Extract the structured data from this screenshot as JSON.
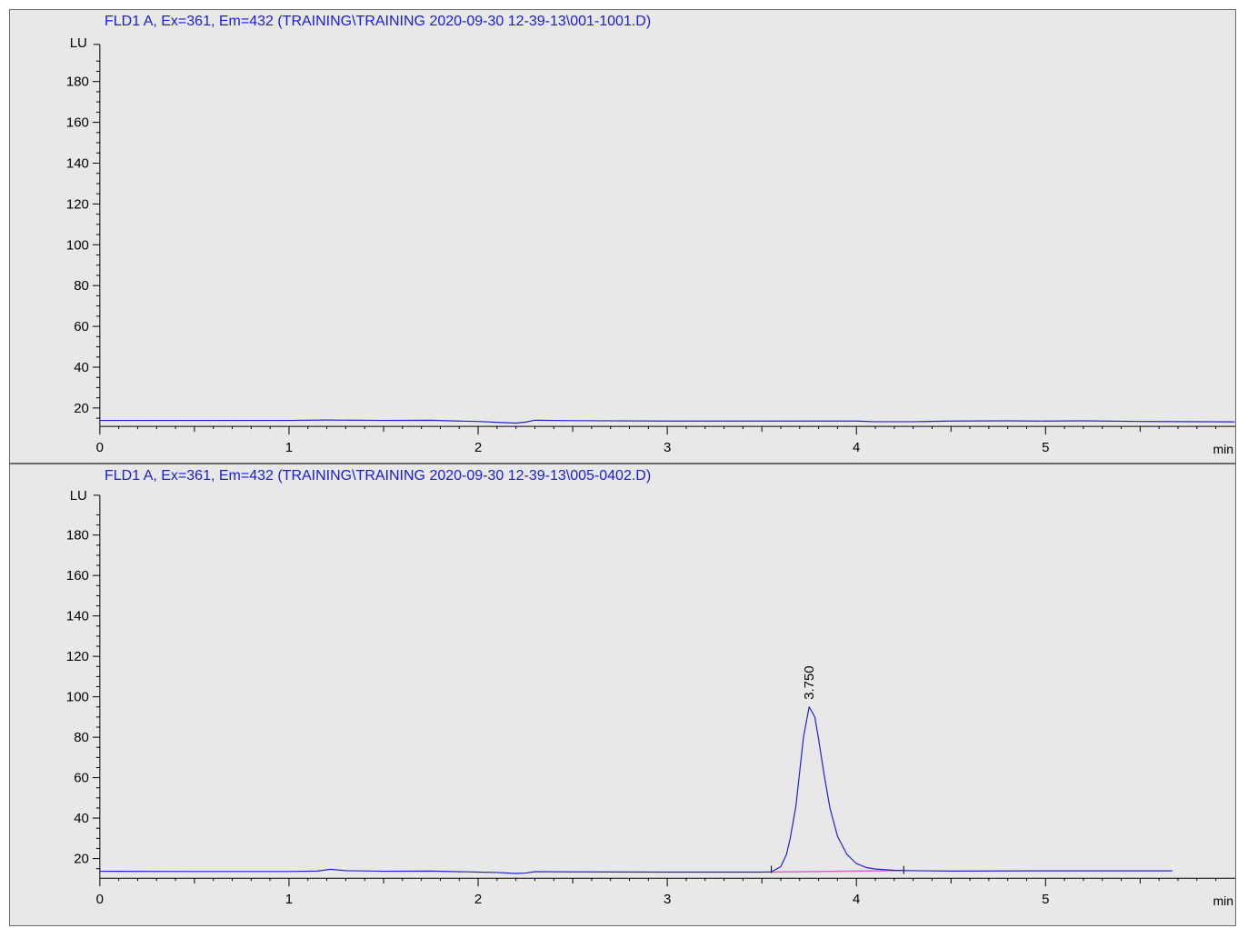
{
  "colors": {
    "background": "#e8e8e8",
    "trace": "#2222cc",
    "title": "#1a1adc",
    "axis": "#000000",
    "baseline": "#e060d0"
  },
  "chart_data": [
    {
      "type": "line",
      "title": "FLD1 A, Ex=361, Em=432 (TRAINING\\TRAINING 2020-09-30 12-39-13\\001-1001.D)",
      "ylabel": "LU",
      "xlabel": "min",
      "xlim": [
        0,
        6
      ],
      "ylim": [
        10,
        195
      ],
      "xticks": [
        "0",
        "1",
        "2",
        "3",
        "4",
        "5"
      ],
      "yticks": [
        "20",
        "40",
        "60",
        "80",
        "100",
        "120",
        "140",
        "160",
        "180"
      ],
      "series": [
        {
          "x": [
            0,
            0.5,
            1.0,
            1.2,
            1.5,
            1.75,
            1.9,
            2.0,
            2.1,
            2.2,
            2.25,
            2.3,
            2.5,
            3.0,
            3.5,
            4.0,
            4.1,
            4.3,
            4.5,
            4.8,
            5.0,
            5.2,
            5.5,
            6.0
          ],
          "y": [
            13.9,
            13.9,
            13.9,
            14.1,
            13.9,
            14.0,
            13.6,
            13.4,
            13.0,
            12.6,
            13.1,
            14.0,
            13.8,
            13.6,
            13.6,
            13.6,
            13.3,
            13.3,
            13.6,
            13.7,
            13.6,
            13.7,
            13.4,
            13.2
          ]
        }
      ]
    },
    {
      "type": "line",
      "title": "FLD1 A, Ex=361, Em=432 (TRAINING\\TRAINING 2020-09-30 12-39-13\\005-0402.D)",
      "ylabel": "LU",
      "xlabel": "min",
      "xlim": [
        0,
        6
      ],
      "ylim": [
        10,
        195
      ],
      "xticks": [
        "0",
        "1",
        "2",
        "3",
        "4",
        "5"
      ],
      "yticks": [
        "20",
        "40",
        "60",
        "80",
        "100",
        "120",
        "140",
        "160",
        "180"
      ],
      "series": [
        {
          "x": [
            0,
            0.5,
            1.0,
            1.15,
            1.22,
            1.3,
            1.5,
            1.75,
            2.0,
            2.1,
            2.2,
            2.25,
            2.3,
            2.5,
            3.0,
            3.5,
            3.55,
            3.6,
            3.63,
            3.65,
            3.68,
            3.7,
            3.72,
            3.75,
            3.78,
            3.8,
            3.83,
            3.86,
            3.9,
            3.95,
            4.0,
            4.05,
            4.1,
            4.2,
            4.3,
            4.5,
            5.0,
            5.5,
            5.67
          ],
          "y": [
            13.7,
            13.6,
            13.6,
            13.8,
            14.7,
            14.0,
            13.7,
            13.8,
            13.3,
            13.1,
            12.6,
            12.8,
            13.5,
            13.4,
            13.3,
            13.3,
            13.4,
            16.0,
            22.0,
            30.0,
            46.0,
            63.0,
            80.0,
            95.0,
            90.0,
            79.0,
            61.0,
            45.0,
            31.0,
            22.0,
            17.5,
            15.6,
            14.8,
            14.2,
            14.0,
            13.8,
            13.9,
            13.9,
            13.9
          ]
        }
      ],
      "peaks": [
        {
          "label": "3.750",
          "x": 3.75,
          "y": 95.0
        }
      ],
      "integration_baseline": {
        "x": [
          3.55,
          4.25
        ],
        "y": [
          13.3,
          14.1
        ]
      }
    }
  ]
}
